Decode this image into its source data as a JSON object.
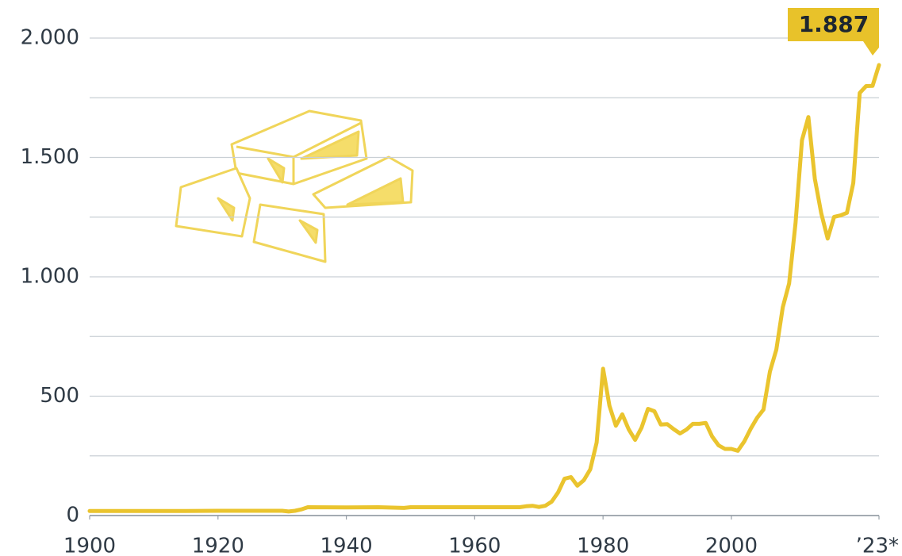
{
  "chart_data": {
    "type": "line",
    "x": [
      1900,
      1905,
      1910,
      1915,
      1920,
      1925,
      1930,
      1931,
      1932,
      1933,
      1934,
      1940,
      1945,
      1949,
      1950,
      1960,
      1965,
      1967,
      1968,
      1969,
      1970,
      1971,
      1972,
      1973,
      1974,
      1975,
      1976,
      1977,
      1978,
      1979,
      1980,
      1981,
      1982,
      1983,
      1984,
      1985,
      1986,
      1987,
      1988,
      1989,
      1990,
      1991,
      1992,
      1993,
      1994,
      1995,
      1996,
      1997,
      1998,
      1999,
      2000,
      2001,
      2002,
      2003,
      2004,
      2005,
      2006,
      2007,
      2008,
      2009,
      2010,
      2011,
      2012,
      2013,
      2014,
      2015,
      2016,
      2017,
      2018,
      2019,
      2020,
      2021,
      2022,
      2023
    ],
    "values": [
      19,
      19,
      19,
      19,
      20,
      20,
      20,
      17,
      20,
      26,
      35,
      34,
      35,
      32,
      35,
      35,
      35,
      35,
      39,
      41,
      36,
      41,
      58,
      97,
      154,
      161,
      125,
      148,
      193,
      306,
      615,
      460,
      376,
      424,
      361,
      317,
      368,
      447,
      437,
      381,
      383,
      362,
      344,
      360,
      384,
      384,
      388,
      331,
      294,
      279,
      279,
      271,
      310,
      363,
      409,
      444,
      603,
      695,
      872,
      972,
      1225,
      1572,
      1669,
      1411,
      1266,
      1160,
      1251,
      1257,
      1268,
      1393,
      1770,
      1799,
      1800,
      1887
    ],
    "color": "#eac42e",
    "xlim": [
      1900,
      2023
    ],
    "ylim": [
      0,
      2000
    ],
    "xticks": [
      1900,
      1920,
      1940,
      1960,
      1980,
      2000,
      {
        "value": 2023,
        "label": "’23*"
      }
    ],
    "yticks": [
      0,
      500,
      {
        "value": 1000,
        "label": "1.000"
      },
      {
        "value": 1500,
        "label": "1.500"
      },
      {
        "value": 2000,
        "label": "2.000"
      }
    ],
    "minor_gridlines": [
      250,
      750,
      1250,
      1750
    ],
    "grid": true,
    "annotation": {
      "x": 2023,
      "y": 1887,
      "label": "1.887"
    }
  }
}
